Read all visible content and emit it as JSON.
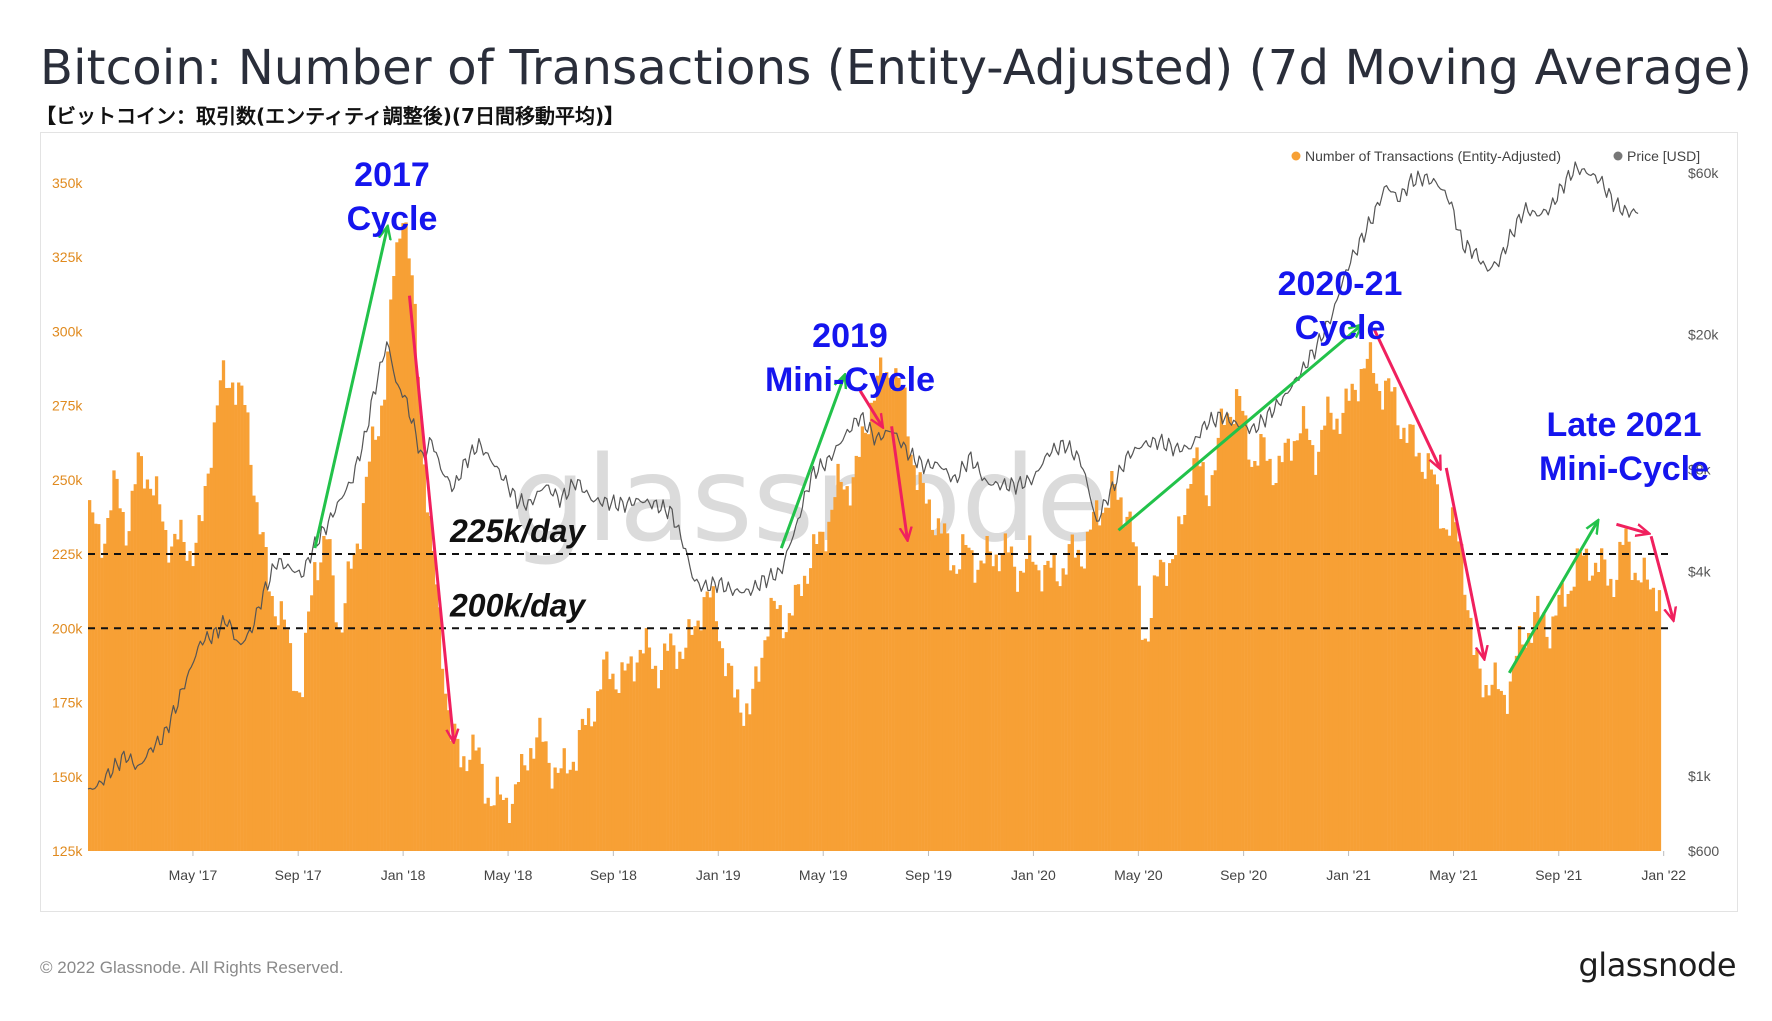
{
  "header": {
    "title": "Bitcoin: Number of Transactions (Entity-Adjusted) (7d Moving Average)",
    "subtitle": "【ビットコイン：取引数(エンティティ調整後)(7日間移動平均)】"
  },
  "footer": {
    "copyright": "© 2022 Glassnode. All Rights Reserved.",
    "brand": "glassnode"
  },
  "watermark": "glassnode",
  "colors": {
    "bars": "#f7a035",
    "price": "#555555",
    "up_arrow": "#22c24a",
    "down_arrow": "#f0205e",
    "annotation": "#1515ee",
    "axis_left": "#e08a1e",
    "axis_right": "#555555"
  },
  "chart_data": {
    "type": "bar",
    "title": "Bitcoin: Number of Transactions (Entity-Adjusted) (7d Moving Average)",
    "legend": {
      "position": "top-right",
      "items": [
        "Number of Transactions (Entity-Adjusted)",
        "Price [USD]"
      ]
    },
    "x_range": [
      2017.0,
      2022.02
    ],
    "x_ticks": [
      {
        "label": "May '17",
        "t": 2017.333
      },
      {
        "label": "Sep '17",
        "t": 2017.667
      },
      {
        "label": "Jan '18",
        "t": 2018.0
      },
      {
        "label": "May '18",
        "t": 2018.333
      },
      {
        "label": "Sep '18",
        "t": 2018.667
      },
      {
        "label": "Jan '19",
        "t": 2019.0
      },
      {
        "label": "May '19",
        "t": 2019.333
      },
      {
        "label": "Sep '19",
        "t": 2019.667
      },
      {
        "label": "Jan '20",
        "t": 2020.0
      },
      {
        "label": "May '20",
        "t": 2020.333
      },
      {
        "label": "Sep '20",
        "t": 2020.667
      },
      {
        "label": "Jan '21",
        "t": 2021.0
      },
      {
        "label": "May '21",
        "t": 2021.333
      },
      {
        "label": "Sep '21",
        "t": 2021.667
      },
      {
        "label": "Jan '22",
        "t": 2022.0
      }
    ],
    "y_left": {
      "label": "Number of Transactions (Entity-Adjusted)",
      "min": 125000,
      "max": 355000,
      "ticks": [
        {
          "label": "350k",
          "v": 350000
        },
        {
          "label": "325k",
          "v": 325000
        },
        {
          "label": "300k",
          "v": 300000
        },
        {
          "label": "275k",
          "v": 275000
        },
        {
          "label": "250k",
          "v": 250000
        },
        {
          "label": "225k",
          "v": 225000
        },
        {
          "label": "200k",
          "v": 200000
        },
        {
          "label": "175k",
          "v": 175000
        },
        {
          "label": "150k",
          "v": 150000
        },
        {
          "label": "125k",
          "v": 125000
        }
      ]
    },
    "y_right": {
      "label": "Price [USD]",
      "scale": "log",
      "min": 600,
      "max": 62000,
      "ticks": [
        {
          "label": "$60k",
          "v": 60000
        },
        {
          "label": "$20k",
          "v": 20000
        },
        {
          "label": "$8k",
          "v": 8000
        },
        {
          "label": "$4k",
          "v": 4000
        },
        {
          "label": "$1k",
          "v": 1000
        },
        {
          "label": "$600",
          "v": 600
        }
      ]
    },
    "transactions_series": {
      "name": "Number of Transactions (Entity-Adjusted)",
      "t": [
        2017.0,
        2017.04,
        2017.08,
        2017.12,
        2017.16,
        2017.2,
        2017.24,
        2017.27,
        2017.3,
        2017.33,
        2017.36,
        2017.39,
        2017.42,
        2017.46,
        2017.5,
        2017.54,
        2017.58,
        2017.62,
        2017.65,
        2017.68,
        2017.72,
        2017.76,
        2017.8,
        2017.84,
        2017.88,
        2017.92,
        2017.95,
        2017.97,
        2018.0,
        2018.03,
        2018.06,
        2018.09,
        2018.12,
        2018.15,
        2018.18,
        2018.21,
        2018.25,
        2018.28,
        2018.31,
        2018.35,
        2018.4,
        2018.45,
        2018.5,
        2018.55,
        2018.6,
        2018.65,
        2018.7,
        2018.75,
        2018.8,
        2018.85,
        2018.9,
        2018.95,
        2019.0,
        2019.05,
        2019.1,
        2019.15,
        2019.2,
        2019.25,
        2019.3,
        2019.35,
        2019.4,
        2019.45,
        2019.5,
        2019.55,
        2019.6,
        2019.65,
        2019.7,
        2019.75,
        2019.8,
        2019.85,
        2019.9,
        2019.95,
        2020.0,
        2020.05,
        2020.1,
        2020.15,
        2020.2,
        2020.25,
        2020.3,
        2020.35,
        2020.4,
        2020.45,
        2020.5,
        2020.55,
        2020.6,
        2020.65,
        2020.7,
        2020.75,
        2020.8,
        2020.85,
        2020.9,
        2020.95,
        2021.0,
        2021.04,
        2021.08,
        2021.12,
        2021.16,
        2021.2,
        2021.24,
        2021.28,
        2021.32,
        2021.36,
        2021.4,
        2021.44,
        2021.48,
        2021.52,
        2021.56,
        2021.6,
        2021.64,
        2021.68,
        2021.72,
        2021.76,
        2021.8,
        2021.84,
        2021.88,
        2021.92,
        2021.96,
        2022.0
      ],
      "v": [
        240000,
        230000,
        245000,
        235000,
        255000,
        248000,
        236000,
        230000,
        225000,
        228000,
        235000,
        260000,
        280000,
        288000,
        270000,
        240000,
        212000,
        200000,
        188000,
        180000,
        220000,
        232000,
        198000,
        220000,
        250000,
        265000,
        290000,
        320000,
        345000,
        310000,
        270000,
        230000,
        195000,
        165000,
        158000,
        160000,
        150000,
        145000,
        142000,
        140000,
        163000,
        158000,
        152000,
        156000,
        176000,
        184000,
        185000,
        191000,
        190000,
        190000,
        195000,
        208000,
        205000,
        175000,
        172000,
        200000,
        205000,
        208000,
        225000,
        238000,
        248000,
        258000,
        281000,
        291000,
        268000,
        245000,
        232000,
        225000,
        222000,
        225000,
        224000,
        223000,
        220000,
        221000,
        219000,
        228000,
        235000,
        248000,
        240000,
        198000,
        218000,
        224000,
        256000,
        247000,
        268000,
        277000,
        258000,
        255000,
        258000,
        267000,
        262000,
        270000,
        277000,
        285000,
        289000,
        280000,
        270000,
        265000,
        255000,
        245000,
        235000,
        225000,
        190000,
        181000,
        176000,
        187000,
        195000,
        206000,
        201000,
        206000,
        225000,
        220000,
        221000,
        218000,
        226000,
        221000,
        212000,
        212000
      ]
    },
    "price_series": {
      "name": "Price [USD]",
      "t": [
        2017.0,
        2017.04,
        2017.08,
        2017.12,
        2017.16,
        2017.2,
        2017.24,
        2017.28,
        2017.32,
        2017.36,
        2017.4,
        2017.44,
        2017.48,
        2017.52,
        2017.56,
        2017.6,
        2017.64,
        2017.68,
        2017.72,
        2017.76,
        2017.8,
        2017.84,
        2017.88,
        2017.92,
        2017.95,
        2017.98,
        2018.0,
        2018.03,
        2018.06,
        2018.09,
        2018.12,
        2018.16,
        2018.2,
        2018.24,
        2018.28,
        2018.32,
        2018.36,
        2018.4,
        2018.45,
        2018.5,
        2018.55,
        2018.6,
        2018.65,
        2018.7,
        2018.75,
        2018.8,
        2018.85,
        2018.9,
        2018.92,
        2018.95,
        2019.0,
        2019.05,
        2019.1,
        2019.15,
        2019.2,
        2019.25,
        2019.3,
        2019.35,
        2019.4,
        2019.45,
        2019.5,
        2019.55,
        2019.6,
        2019.65,
        2019.7,
        2019.75,
        2019.8,
        2019.85,
        2019.9,
        2019.95,
        2020.0,
        2020.05,
        2020.1,
        2020.15,
        2020.2,
        2020.22,
        2020.25,
        2020.3,
        2020.35,
        2020.4,
        2020.45,
        2020.5,
        2020.55,
        2020.6,
        2020.65,
        2020.7,
        2020.75,
        2020.8,
        2020.85,
        2020.9,
        2020.95,
        2021.0,
        2021.04,
        2021.08,
        2021.12,
        2021.16,
        2021.2,
        2021.24,
        2021.28,
        2021.32,
        2021.36,
        2021.4,
        2021.44,
        2021.48,
        2021.52,
        2021.56,
        2021.6,
        2021.64,
        2021.68,
        2021.72,
        2021.76,
        2021.8,
        2021.84,
        2021.88,
        2021.92,
        2021.96,
        2022.0
      ],
      "v": [
        900,
        950,
        1050,
        1150,
        1050,
        1200,
        1300,
        1600,
        2000,
        2500,
        2600,
        2900,
        2400,
        2700,
        3500,
        4300,
        4100,
        3900,
        4800,
        5500,
        6500,
        7500,
        10000,
        15000,
        19000,
        14000,
        13500,
        11000,
        8500,
        9800,
        8000,
        7000,
        8500,
        9500,
        8500,
        7500,
        6500,
        6300,
        7200,
        6500,
        7400,
        6500,
        6400,
        6300,
        6500,
        6300,
        6000,
        4500,
        3800,
        3600,
        3700,
        3500,
        3500,
        3800,
        4000,
        5500,
        7800,
        8500,
        10000,
        11500,
        9800,
        10500,
        9000,
        8200,
        8300,
        7400,
        8700,
        7300,
        7200,
        7200,
        7500,
        9000,
        9500,
        8500,
        5500,
        6200,
        7000,
        8800,
        9500,
        9700,
        9200,
        9300,
        11000,
        11500,
        10800,
        10500,
        11700,
        13200,
        15500,
        18500,
        23000,
        32000,
        38000,
        45000,
        55000,
        50000,
        57000,
        58000,
        56000,
        50000,
        37000,
        35000,
        31000,
        33000,
        40000,
        47000,
        45000,
        47000,
        55000,
        62000,
        60000,
        57000,
        49000,
        46000,
        46000
      ]
    },
    "reference_lines": [
      {
        "label": "225k/day",
        "value": 225000
      },
      {
        "label": "200k/day",
        "value": 200000
      }
    ],
    "annotations": [
      {
        "text": "2017",
        "text2": "Cycle"
      },
      {
        "text": "2019",
        "text2": "Mini-Cycle"
      },
      {
        "text": "2020-21",
        "text2": "Cycle"
      },
      {
        "text": "Late 2021",
        "text2": "Mini-Cycle"
      }
    ],
    "trend_arrows": [
      {
        "dir": "up",
        "t0": 2017.72,
        "v0": 227000,
        "t1": 2017.95,
        "v1": 335000
      },
      {
        "dir": "down",
        "t0": 2018.02,
        "v0": 312000,
        "t1": 2018.16,
        "v1": 162000
      },
      {
        "dir": "up",
        "t0": 2019.2,
        "v0": 227000,
        "t1": 2019.4,
        "v1": 285000
      },
      {
        "dir": "down",
        "t0": 2019.45,
        "v0": 280000,
        "t1": 2019.52,
        "v1": 268000
      },
      {
        "dir": "down",
        "t0": 2019.55,
        "v0": 268000,
        "t1": 2019.6,
        "v1": 230000
      },
      {
        "dir": "up",
        "t0": 2020.27,
        "v0": 233000,
        "t1": 2021.04,
        "v1": 302000
      },
      {
        "dir": "down",
        "t0": 2021.08,
        "v0": 301000,
        "t1": 2021.29,
        "v1": 254000
      },
      {
        "dir": "down",
        "t0": 2021.31,
        "v0": 254000,
        "t1": 2021.43,
        "v1": 190000
      },
      {
        "dir": "up",
        "t0": 2021.51,
        "v0": 185000,
        "t1": 2021.79,
        "v1": 236000
      },
      {
        "dir": "down",
        "t0": 2021.85,
        "v0": 235000,
        "t1": 2021.95,
        "v1": 232000
      },
      {
        "dir": "down",
        "t0": 2021.96,
        "v0": 231000,
        "t1": 2022.03,
        "v1": 203000
      }
    ]
  }
}
